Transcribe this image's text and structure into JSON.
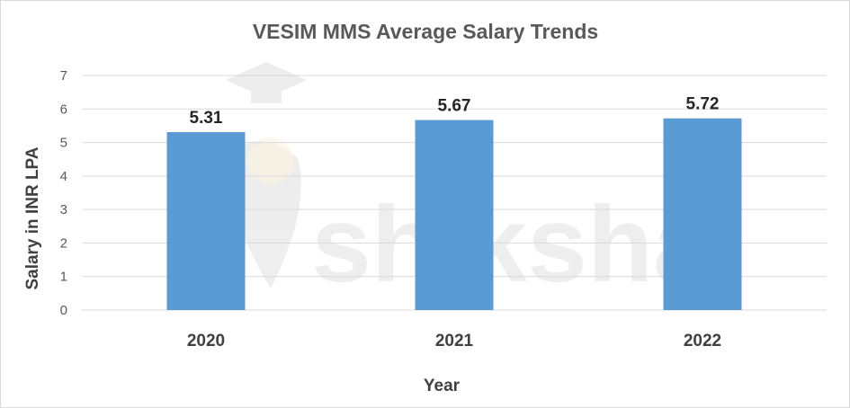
{
  "chart_data": {
    "type": "bar",
    "title": "VESIM MMS Average Salary Trends",
    "xlabel": "Year",
    "ylabel": "Salary in INR LPA",
    "categories": [
      "2020",
      "2021",
      "2022"
    ],
    "values": [
      5.31,
      5.67,
      5.72
    ],
    "data_labels": [
      "5.31",
      "5.67",
      "5.72"
    ],
    "ylim": [
      0,
      7
    ],
    "yticks": [
      0,
      1,
      2,
      3,
      4,
      5,
      6,
      7
    ],
    "grid": true,
    "legend": "none",
    "bar_color": "#5b9bd5"
  },
  "watermark": {
    "text": "shiksha",
    "icon": "graduation-cap-icon"
  }
}
